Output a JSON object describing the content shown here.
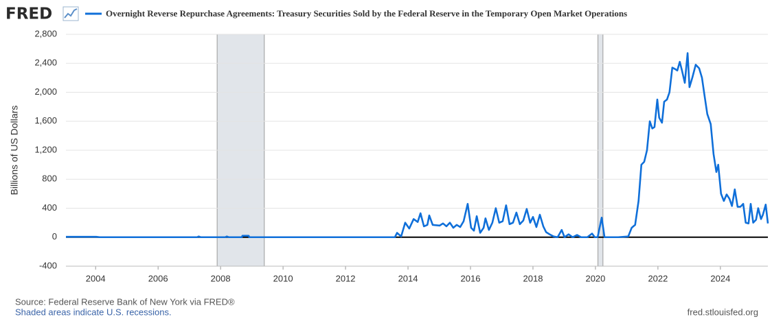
{
  "brand": "FRED",
  "footer": {
    "source": "Source: Federal Reserve Bank of New York via FRED®",
    "note": "Shaded areas indicate U.S. recessions.",
    "site": "fred.stlouisfed.org"
  },
  "chart_data": {
    "type": "line",
    "ylabel": "Billions of US Dollars",
    "xlim": [
      2003.05,
      2025.52
    ],
    "ylim": [
      -400,
      2800
    ],
    "xticks": [
      2004,
      2006,
      2008,
      2010,
      2012,
      2014,
      2016,
      2018,
      2020,
      2022,
      2024
    ],
    "yticks": [
      -400,
      0,
      400,
      800,
      {
        "value": 1200,
        "label": "1,200"
      },
      {
        "value": 1600,
        "label": "1,600"
      },
      {
        "value": 2000,
        "label": "2,000"
      },
      {
        "value": 2400,
        "label": "2,400"
      },
      {
        "value": 2800,
        "label": "2,800"
      }
    ],
    "grid": true,
    "recessions": [
      [
        2007.89,
        2009.4
      ],
      [
        2020.08,
        2020.24
      ]
    ],
    "x": [
      2003.05,
      2003.16,
      2003.89,
      2004.02,
      2004.13,
      2007.25,
      2007.3,
      2007.36,
      2008.15,
      2008.2,
      2008.26,
      2008.68,
      2008.7,
      2008.9,
      2008.92,
      2013.58,
      2013.65,
      2013.78,
      2013.91,
      2014.04,
      2014.18,
      2014.31,
      2014.4,
      2014.51,
      2014.62,
      2014.68,
      2014.79,
      2015.01,
      2015.12,
      2015.23,
      2015.34,
      2015.45,
      2015.56,
      2015.67,
      2015.78,
      2015.91,
      2016.02,
      2016.11,
      2016.2,
      2016.31,
      2016.42,
      2016.48,
      2016.59,
      2016.7,
      2016.81,
      2016.92,
      2017.03,
      2017.14,
      2017.25,
      2017.36,
      2017.47,
      2017.58,
      2017.69,
      2017.8,
      2017.91,
      2018.0,
      2018.11,
      2018.22,
      2018.33,
      2018.42,
      2018.53,
      2018.66,
      2018.79,
      2018.92,
      2019.01,
      2019.14,
      2019.27,
      2019.41,
      2019.54,
      2019.74,
      2019.89,
      2019.98,
      2020.07,
      2020.2,
      2020.29,
      2020.73,
      2021.05,
      2021.16,
      2021.27,
      2021.38,
      2021.47,
      2021.56,
      2021.65,
      2021.74,
      2021.82,
      2021.89,
      2021.98,
      2022.04,
      2022.13,
      2022.2,
      2022.29,
      2022.37,
      2022.46,
      2022.55,
      2022.62,
      2022.7,
      2022.77,
      2022.86,
      2022.95,
      2023.01,
      2023.1,
      2023.21,
      2023.32,
      2023.41,
      2023.49,
      2023.58,
      2023.69,
      2023.78,
      2023.87,
      2023.93,
      2024.02,
      2024.11,
      2024.2,
      2024.29,
      2024.37,
      2024.46,
      2024.55,
      2024.64,
      2024.73,
      2024.81,
      2024.9,
      2024.97,
      2025.05,
      2025.14,
      2025.21,
      2025.3,
      2025.36,
      2025.45,
      2025.52
    ],
    "series": [
      {
        "name": "Overnight Reverse Repurchase Agreements: Treasury Securities Sold by the Federal Reserve in the Temporary Open Market Operations",
        "color": "#0f6fd9",
        "values": [
          5,
          5,
          5,
          5,
          0,
          0,
          10,
          0,
          0,
          10,
          0,
          0,
          20,
          20,
          0,
          0,
          60,
          10,
          200,
          120,
          250,
          210,
          330,
          150,
          170,
          300,
          170,
          160,
          190,
          150,
          200,
          130,
          170,
          140,
          220,
          460,
          130,
          90,
          290,
          60,
          130,
          260,
          100,
          200,
          400,
          200,
          220,
          440,
          180,
          200,
          340,
          180,
          230,
          390,
          200,
          280,
          140,
          310,
          150,
          70,
          40,
          10,
          0,
          100,
          0,
          40,
          0,
          30,
          0,
          0,
          50,
          0,
          0,
          270,
          0,
          0,
          10,
          130,
          170,
          500,
          1000,
          1040,
          1200,
          1600,
          1500,
          1520,
          1900,
          1650,
          1580,
          1870,
          1900,
          2000,
          2340,
          2320,
          2300,
          2420,
          2300,
          2130,
          2540,
          2070,
          2200,
          2380,
          2330,
          2200,
          1960,
          1700,
          1560,
          1150,
          900,
          1000,
          600,
          500,
          590,
          530,
          430,
          660,
          420,
          420,
          460,
          200,
          190,
          460,
          200,
          240,
          400,
          250,
          310,
          450,
          190
        ]
      }
    ]
  }
}
